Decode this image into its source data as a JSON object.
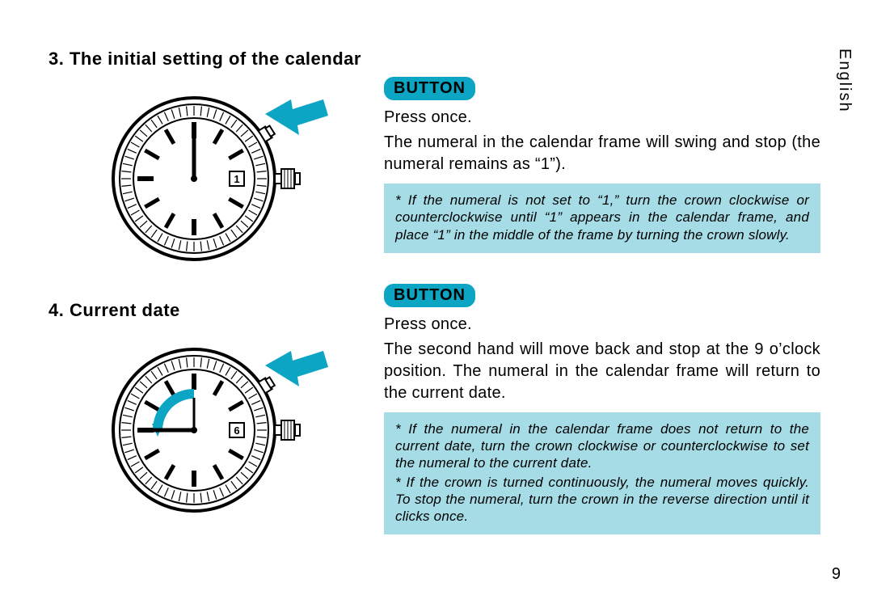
{
  "lang_label": "English",
  "page_number": "9",
  "left": {
    "section3_heading": "3. The initial setting of the calendar",
    "section4_heading": "4. Current date"
  },
  "right": {
    "button_label": "BUTTON",
    "section3": {
      "line1": "Press once.",
      "line2": "The numeral in the calendar frame will swing and stop (the numeral remains as “1”).",
      "note": "* If the numeral is not set to “1,” turn the crown clockwise or counterclockwise until “1” appears in the calendar frame, and place “1” in the middle of the frame by turning the crown slowly."
    },
    "section4": {
      "line1": "Press once.",
      "line2": "The second hand will move back and stop at the 9 o’clock position.  The numeral in the calendar frame will return to the current date.",
      "note1": "* If the numeral in the calendar frame does not return to the current date, turn the crown clockwise or counterclockwise to set the numeral to the current date.",
      "note2": "* If the crown is turned continuously, the numeral moves quickly.  To stop the numeral, turn the crown in the reverse direction until it clicks once."
    }
  },
  "watch1": {
    "date_numeral": "1",
    "arrow_color": "#0ca5c4",
    "hand_angle_deg": 0,
    "has_sweep_arc": false
  },
  "watch2": {
    "date_numeral": "6",
    "arrow_color": "#0ca5c4",
    "hand_angle_deg": -90,
    "has_sweep_arc": true,
    "sweep_color": "#0ca5c4"
  },
  "style": {
    "pill_bg": "#0ca5c4",
    "note_bg": "#a6dce6"
  }
}
